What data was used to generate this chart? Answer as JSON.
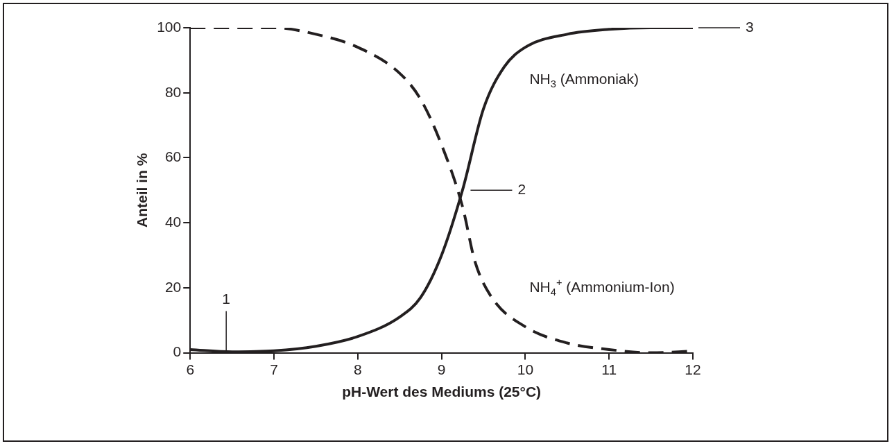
{
  "chart_data": {
    "type": "line",
    "xlabel": "pH-Wert des Mediums (25°C)",
    "ylabel": "Anteil in %",
    "xlim": [
      6,
      12
    ],
    "xticks": [
      6,
      7,
      8,
      9,
      10,
      11,
      12
    ],
    "ylim": [
      0,
      100
    ],
    "yticks": [
      0,
      20,
      40,
      60,
      80,
      100
    ],
    "grid": false,
    "legend": false,
    "marker": "none",
    "series": [
      {
        "name": "NH$_{3}$ (Ammoniak)",
        "color": "#231f20",
        "line_style": "solid",
        "x": [
          6,
          6.5,
          7,
          7.5,
          8,
          8.5,
          8.75,
          9,
          9.25,
          9.5,
          9.75,
          10,
          10.5,
          11,
          11.5,
          12
        ],
        "values": [
          1,
          0.3,
          0.6,
          2,
          5,
          11,
          17,
          30,
          50,
          75,
          88,
          94,
          98,
          99.5,
          100,
          100
        ]
      },
      {
        "name": "NH$_{4}$$^{+}$ (Ammonium-Ion)",
        "color": "#231f20",
        "line_style": "dashed",
        "x": [
          6,
          6.5,
          7,
          7.5,
          8,
          8.5,
          8.75,
          9,
          9.25,
          9.4,
          9.6,
          10,
          10.5,
          11,
          11.5,
          12
        ],
        "values": [
          100,
          100,
          100,
          98,
          94,
          86,
          78,
          64,
          45,
          28,
          17,
          8,
          3,
          1,
          0,
          0.5
        ]
      }
    ],
    "annotations": [
      {
        "text": "1",
        "x": 6.43,
        "y": 0
      },
      "2",
      "3"
    ]
  }
}
